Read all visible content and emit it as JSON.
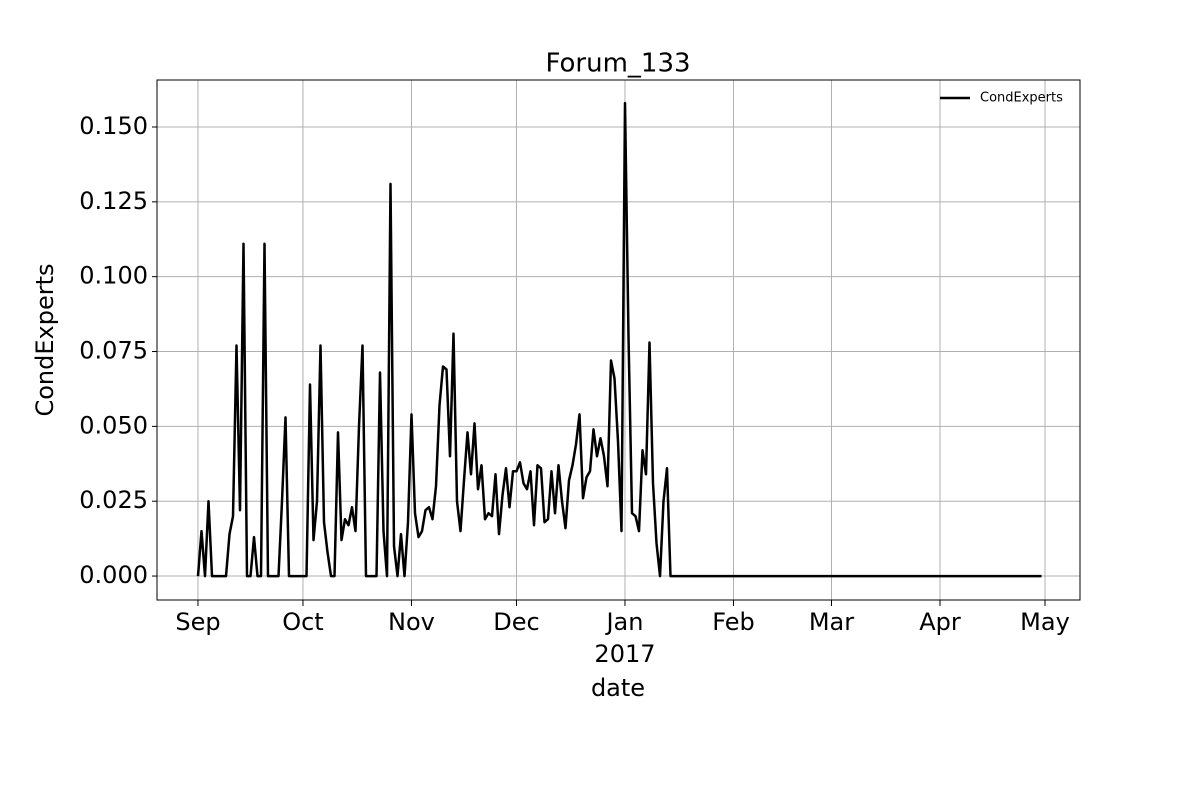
{
  "chart_data": {
    "type": "line",
    "title": "Forum_133",
    "xlabel": "date",
    "ylabel": "CondExperts",
    "year_label": "2017",
    "categories": [
      "Sep",
      null,
      null,
      null,
      null,
      null,
      null,
      null,
      null,
      null,
      null,
      null,
      null,
      null,
      null,
      null,
      null,
      null,
      null,
      null,
      null,
      null,
      null,
      null,
      null,
      null,
      null,
      null,
      null,
      null,
      "Oct",
      null,
      null,
      null,
      null,
      null,
      null,
      null,
      null,
      null,
      null,
      null,
      null,
      null,
      null,
      null,
      null,
      null,
      null,
      null,
      null,
      null,
      null,
      null,
      null,
      null,
      null,
      null,
      null,
      null,
      null,
      "Nov",
      null,
      null,
      null,
      null,
      null,
      null,
      null,
      null,
      null,
      null,
      null,
      null,
      null,
      null,
      null,
      null,
      null,
      null,
      null,
      null,
      null,
      null,
      null,
      null,
      null,
      null,
      null,
      null,
      null,
      "Dec",
      null,
      null,
      null,
      null,
      null,
      null,
      null,
      null,
      null,
      null,
      null,
      null,
      null,
      null,
      null,
      null,
      null,
      null,
      null,
      null,
      null,
      null,
      null,
      null,
      null,
      null,
      null,
      null,
      null,
      null,
      "Jan",
      null,
      null,
      null,
      null,
      null,
      null,
      null,
      null,
      null,
      null,
      null,
      null,
      null,
      null,
      null,
      null,
      null,
      null,
      null,
      null,
      null,
      null,
      null,
      null,
      null,
      null,
      null,
      null,
      null,
      null,
      "Feb",
      null,
      null,
      null,
      null,
      null,
      null,
      null,
      null,
      null,
      null,
      null,
      null,
      null,
      null,
      null,
      null,
      null,
      null,
      null,
      null,
      null,
      null,
      null,
      null,
      null,
      null,
      null,
      "Mar",
      null,
      null,
      null,
      null,
      null,
      null,
      null,
      null,
      null,
      null,
      null,
      null,
      null,
      null,
      null,
      null,
      null,
      null,
      null,
      null,
      null,
      null,
      null,
      null,
      null,
      null,
      null,
      null,
      null,
      null,
      "Apr",
      null,
      null,
      null,
      null,
      null,
      null,
      null,
      null,
      null,
      null,
      null,
      null,
      null,
      null,
      null,
      null,
      null,
      null,
      null,
      null,
      null,
      null,
      null,
      null,
      null,
      null,
      null,
      null,
      null,
      "May"
    ],
    "series": [
      {
        "name": "CondExperts",
        "color": "#000000",
        "values": [
          0,
          0.015,
          0,
          0.025,
          0,
          0,
          0,
          0,
          0,
          0.014,
          0.02,
          0.077,
          0.022,
          0.111,
          0,
          0,
          0.013,
          0,
          0,
          0.111,
          0,
          0,
          0,
          0,
          0.025,
          0.053,
          0,
          0,
          0,
          0,
          0,
          0,
          0.064,
          0.012,
          0.025,
          0.077,
          0.018,
          0.008,
          0,
          0,
          0.048,
          0.012,
          0.019,
          0.017,
          0.023,
          0.015,
          0.05,
          0.077,
          0,
          0,
          0,
          0,
          0.068,
          0.015,
          0,
          0.131,
          0.01,
          0,
          0.014,
          0,
          0.018,
          0.054,
          0.021,
          0.013,
          0.015,
          0.022,
          0.023,
          0.019,
          0.03,
          0.057,
          0.07,
          0.069,
          0.04,
          0.081,
          0.025,
          0.015,
          0.032,
          0.048,
          0.034,
          0.051,
          0.029,
          0.037,
          0.019,
          0.021,
          0.02,
          0.034,
          0.014,
          0.027,
          0.036,
          0.023,
          0.035,
          0.035,
          0.038,
          0.031,
          0.029,
          0.035,
          0.017,
          0.037,
          0.036,
          0.018,
          0.019,
          0.035,
          0.021,
          0.037,
          0.025,
          0.016,
          0.032,
          0.037,
          0.044,
          0.054,
          0.026,
          0.033,
          0.035,
          0.049,
          0.04,
          0.046,
          0.04,
          0.03,
          0.072,
          0.066,
          0.045,
          0.015,
          0.158,
          0.08,
          0.021,
          0.02,
          0.015,
          0.042,
          0.034,
          0.078,
          0.031,
          0.011,
          0,
          0.025,
          0.036,
          0,
          0,
          0,
          0,
          0,
          0,
          0,
          0,
          0,
          0,
          0,
          0,
          0,
          0,
          0,
          0,
          0,
          0,
          0,
          0,
          0,
          0,
          0,
          0,
          0,
          0,
          0,
          0,
          0,
          0,
          0,
          0,
          0,
          0,
          0,
          0,
          0,
          0,
          0,
          0,
          0,
          0,
          0,
          0,
          0,
          0,
          0,
          0,
          0,
          0,
          0,
          0,
          0,
          0,
          0,
          0,
          0,
          0,
          0,
          0,
          0,
          0,
          0,
          0,
          0,
          0,
          0,
          0,
          0,
          0,
          0,
          0,
          0,
          0,
          0,
          0,
          0,
          0,
          0,
          0,
          0,
          0,
          0,
          0,
          0,
          0,
          0,
          0,
          0,
          0,
          0,
          0,
          0,
          0,
          0,
          0,
          0,
          0,
          0,
          0,
          0,
          0,
          0,
          0,
          0,
          0,
          0,
          null
        ]
      }
    ],
    "ylim": [
      -0.008,
      0.1657
    ],
    "yticks": [
      {
        "value": 0,
        "label": "0.000"
      },
      {
        "value": 0.025,
        "label": "0.025"
      },
      {
        "value": 0.05,
        "label": "0.050"
      },
      {
        "value": 0.075,
        "label": "0.075"
      },
      {
        "value": 0.1,
        "label": "0.100"
      },
      {
        "value": 0.125,
        "label": "0.125"
      },
      {
        "value": 0.15,
        "label": "0.150"
      }
    ],
    "grid": true,
    "legend": "upper right"
  }
}
